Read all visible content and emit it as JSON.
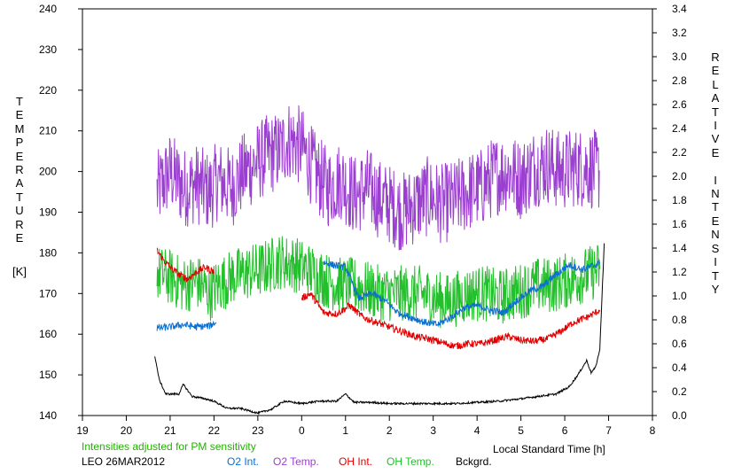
{
  "chart_data": {
    "type": "line",
    "station": "LEO 26MAR2012",
    "note": "Intensities adjusted for PM sensitivity",
    "xlabel": "Local Standard Time [h]",
    "ylabel_left": "TEMPERATURE",
    "ylabel_left_unit": "[K]",
    "ylabel_right": "RELATIVE INTENSITY",
    "x_ticks": [
      "19",
      "20",
      "21",
      "22",
      "23",
      "0",
      "1",
      "2",
      "3",
      "4",
      "5",
      "6",
      "7",
      "8"
    ],
    "xlim": [
      19,
      32
    ],
    "ylim_left": [
      140,
      240
    ],
    "yticks_left": [
      "140",
      "150",
      "160",
      "170",
      "180",
      "190",
      "200",
      "210",
      "220",
      "230",
      "240"
    ],
    "ylim_right": [
      0.0,
      3.4
    ],
    "yticks_right": [
      "0.0",
      "0.2",
      "0.4",
      "0.6",
      "0.8",
      "1.0",
      "1.2",
      "1.4",
      "1.6",
      "1.8",
      "2.0",
      "2.2",
      "2.4",
      "2.6",
      "2.8",
      "3.0",
      "3.2",
      "3.4"
    ],
    "colors": {
      "o2_int": "#0a6fd0",
      "o2_temp": "#9b3fd0",
      "oh_int": "#e00000",
      "oh_temp": "#22c02a",
      "bckgrd": "#000000",
      "note": "#22b000"
    },
    "series": [
      {
        "name": "O2 Temp.",
        "axis": "left",
        "key": "o2_temp",
        "x": [
          20.7,
          21.0,
          21.3,
          21.6,
          21.9,
          22.1,
          22.4,
          22.7,
          23.2,
          23.5,
          23.7,
          24.0,
          24.3,
          24.6,
          24.9,
          25.2,
          25.5,
          25.8,
          26.0,
          26.3,
          26.6,
          26.9,
          27.2,
          27.5,
          27.8,
          28.1,
          28.4,
          28.7,
          29.0,
          29.3,
          29.6,
          29.9,
          30.2,
          30.5,
          30.8
        ],
        "values": [
          195,
          200,
          196,
          197,
          195,
          198,
          196,
          200,
          204,
          205,
          208,
          206,
          200,
          196,
          198,
          194,
          196,
          193,
          192,
          190,
          192,
          194,
          192,
          193,
          195,
          196,
          199,
          200,
          198,
          201,
          202,
          200,
          201,
          201,
          200
        ],
        "noise": 10
      },
      {
        "name": "OH Temp.",
        "axis": "left",
        "key": "oh_temp",
        "x": [
          20.7,
          21.0,
          21.3,
          21.6,
          21.9,
          22.1,
          22.4,
          22.7,
          23.1,
          23.5,
          23.9,
          24.1,
          24.3,
          24.6,
          24.9,
          25.2,
          25.5,
          25.8,
          26.1,
          26.4,
          26.7,
          27.0,
          27.3,
          27.6,
          27.9,
          28.2,
          28.5,
          28.8,
          29.1,
          29.4,
          29.7,
          30.0,
          30.3,
          30.6,
          30.8
        ],
        "values": [
          175,
          174,
          172,
          173,
          170,
          172,
          174,
          175,
          176,
          178,
          177,
          176,
          175,
          173,
          172,
          172,
          171,
          170,
          170,
          170,
          170,
          169,
          168,
          169,
          170,
          170,
          169,
          170,
          171,
          172,
          172,
          173,
          174,
          175,
          176
        ],
        "noise": 7
      },
      {
        "name": "OH Int.",
        "axis": "right",
        "key": "oh_int",
        "x": [
          20.7,
          20.85,
          21.0,
          21.2,
          21.4,
          21.6,
          21.8,
          22.0,
          24.0,
          24.2,
          24.5,
          24.8,
          25.1,
          25.4,
          25.7,
          26.0,
          26.3,
          26.6,
          26.9,
          27.2,
          27.5,
          27.8,
          28.1,
          28.4,
          28.7,
          29.0,
          29.3,
          29.6,
          29.9,
          30.2,
          30.5,
          30.8
        ],
        "values": [
          1.38,
          1.3,
          1.24,
          1.18,
          1.14,
          1.2,
          1.24,
          1.2,
          0.98,
          1.02,
          0.86,
          0.85,
          0.92,
          0.82,
          0.78,
          0.74,
          0.7,
          0.66,
          0.64,
          0.61,
          0.58,
          0.6,
          0.6,
          0.63,
          0.66,
          0.63,
          0.62,
          0.64,
          0.7,
          0.78,
          0.82,
          0.88
        ],
        "noise": 0.03
      },
      {
        "name": "O2 Int.",
        "axis": "right",
        "key": "o2_int",
        "x": [
          20.7,
          21.0,
          21.3,
          21.6,
          21.9,
          22.05,
          24.5,
          24.7,
          25.0,
          25.3,
          25.6,
          25.9,
          26.2,
          26.5,
          26.8,
          27.1,
          27.4,
          27.7,
          28.0,
          28.3,
          28.6,
          28.9,
          29.2,
          29.5,
          29.8,
          30.1,
          30.4,
          30.7,
          30.8
        ],
        "values": [
          0.73,
          0.74,
          0.76,
          0.74,
          0.75,
          0.78,
          1.28,
          1.26,
          1.24,
          0.98,
          1.02,
          0.96,
          0.86,
          0.82,
          0.78,
          0.76,
          0.82,
          0.9,
          0.92,
          0.88,
          0.86,
          0.96,
          1.04,
          1.08,
          1.18,
          1.26,
          1.22,
          1.26,
          1.28
        ],
        "noise": 0.03
      },
      {
        "name": "Bckgrd.",
        "axis": "right",
        "key": "bckgrd",
        "x": [
          20.65,
          20.75,
          20.9,
          21.1,
          21.2,
          21.3,
          21.5,
          21.8,
          22.0,
          22.3,
          22.6,
          23.0,
          23.3,
          23.6,
          24.0,
          24.4,
          24.8,
          25.0,
          25.2,
          25.6,
          26.0,
          26.5,
          27.0,
          27.5,
          28.0,
          28.5,
          29.0,
          29.4,
          29.8,
          30.1,
          30.3,
          30.5,
          30.6,
          30.7,
          30.8,
          30.85,
          30.9
        ],
        "values": [
          0.5,
          0.3,
          0.18,
          0.18,
          0.18,
          0.26,
          0.16,
          0.14,
          0.12,
          0.06,
          0.06,
          0.02,
          0.05,
          0.12,
          0.1,
          0.12,
          0.12,
          0.18,
          0.11,
          0.11,
          0.1,
          0.1,
          0.1,
          0.1,
          0.11,
          0.12,
          0.14,
          0.16,
          0.18,
          0.24,
          0.34,
          0.46,
          0.36,
          0.4,
          0.55,
          1.0,
          1.44
        ],
        "noise": 0.008
      }
    ]
  }
}
